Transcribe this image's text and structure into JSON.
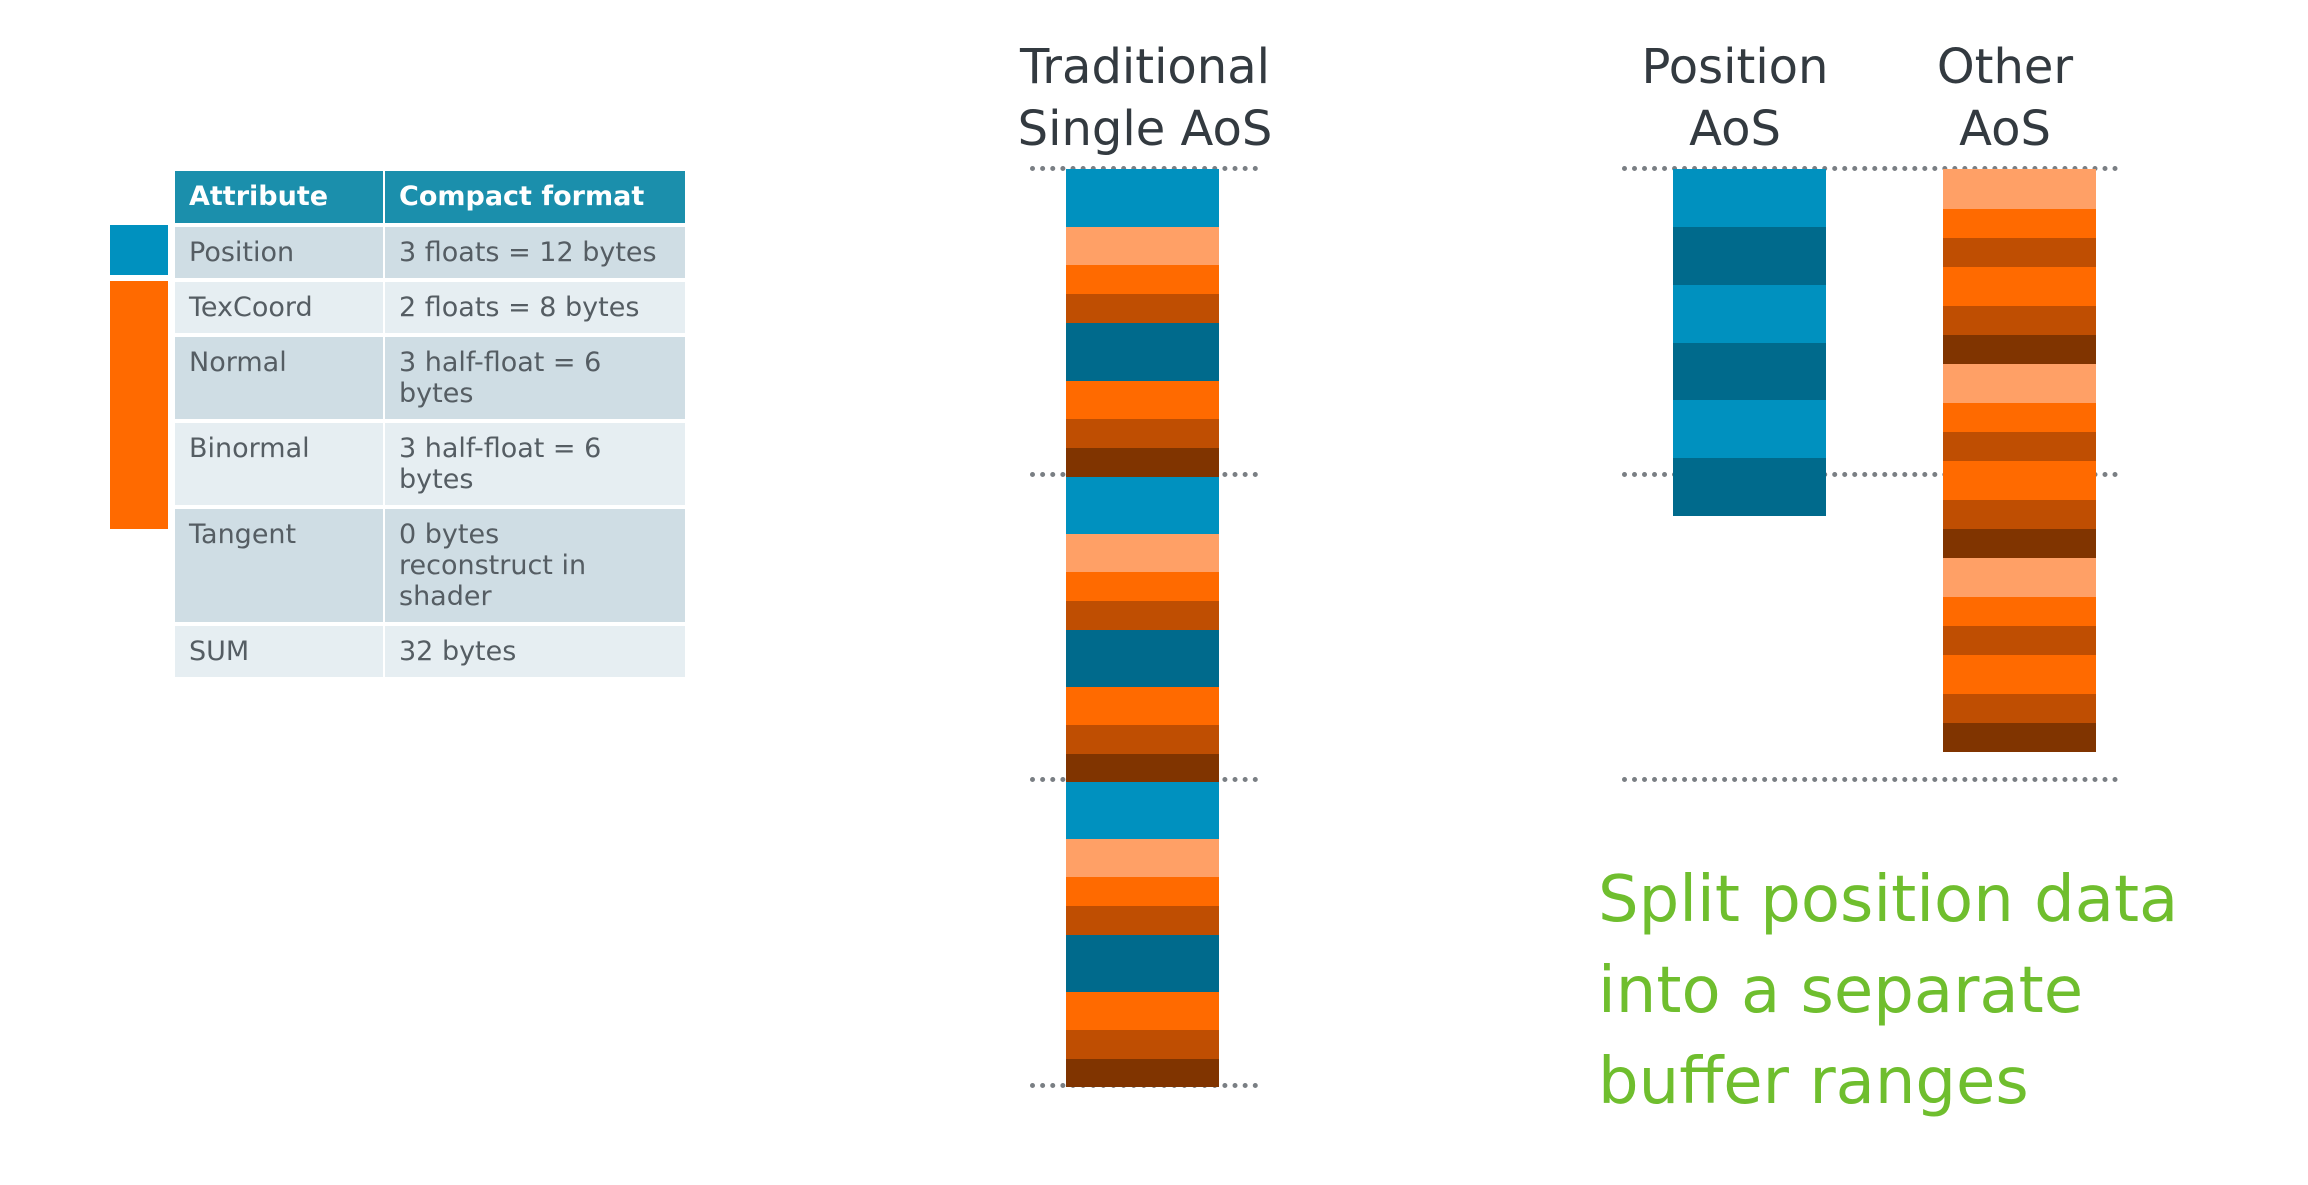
{
  "colors": {
    "blue_light": "#0091bf",
    "blue_dark": "#006a8c",
    "orange_pale": "#ffa066",
    "orange": "#ff6a00",
    "orange_dark": "#bf4e02",
    "brown": "#803400",
    "note_green": "#6fbe2e"
  },
  "table": {
    "headers": [
      "Attribute",
      "Compact format"
    ],
    "rows": [
      {
        "attribute": "Position",
        "format": "3 floats = 12 bytes"
      },
      {
        "attribute": "TexCoord",
        "format": "2 floats = 8 bytes"
      },
      {
        "attribute": "Normal",
        "format": "3 half-float = 6 bytes"
      },
      {
        "attribute": "Binormal",
        "format": "3 half-float = 6 bytes"
      },
      {
        "attribute": "Tangent",
        "format": "0 bytes",
        "format_line2": "reconstruct in shader"
      },
      {
        "attribute": "SUM",
        "format": "32 bytes"
      }
    ]
  },
  "columns": {
    "traditional": {
      "line1": "Traditional",
      "line2": "Single AoS"
    },
    "position": {
      "line1": "Position",
      "line2": "AoS"
    },
    "other": {
      "line1": "Other",
      "line2": "AoS"
    }
  },
  "note": {
    "line1": "Split position data",
    "line2": "into a separate",
    "line3": "buffer ranges"
  }
}
